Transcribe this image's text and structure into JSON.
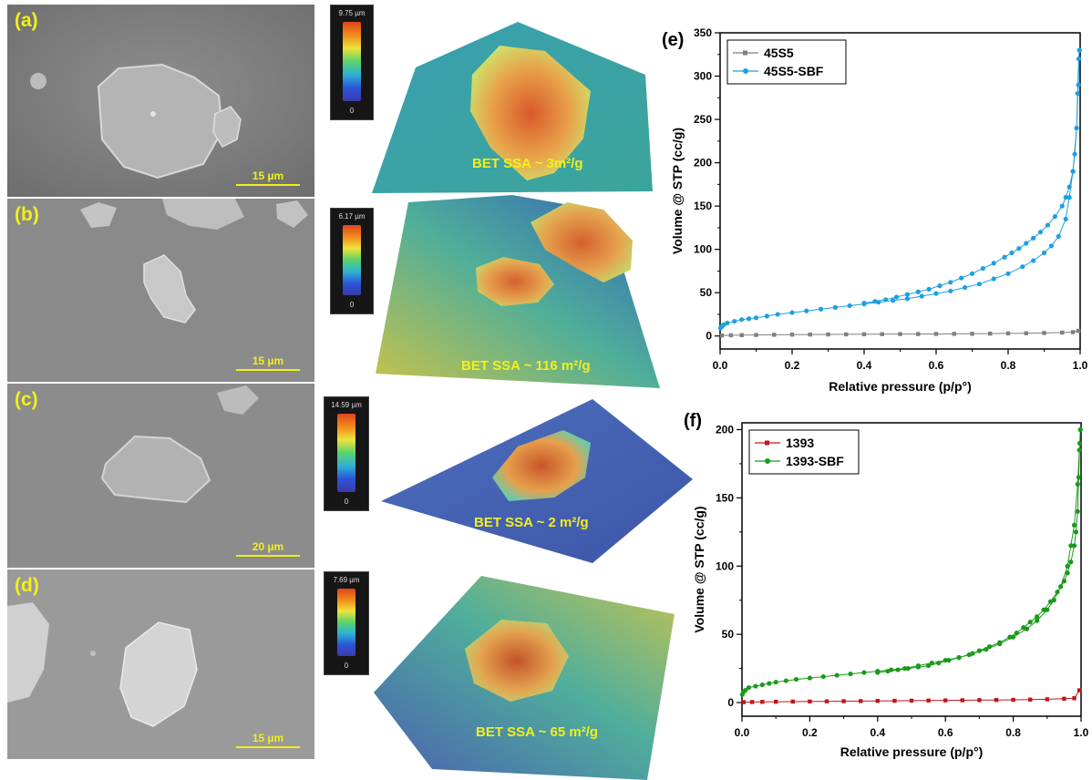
{
  "panels": [
    {
      "letter": "(a)",
      "scale": "15 µm",
      "cbar_max": "9.75 µm",
      "cbar_min": "0",
      "bet": "BET SSA ~ 3m²/g"
    },
    {
      "letter": "(b)",
      "scale": "15 µm",
      "cbar_max": "6.17 µm",
      "cbar_min": "0",
      "bet": "BET SSA ~ 116 m²/g"
    },
    {
      "letter": "(c)",
      "scale": "20 µm",
      "cbar_max": "14.59 µm",
      "cbar_min": "0",
      "bet": "BET SSA ~ 2 m²/g"
    },
    {
      "letter": "(d)",
      "scale": "15 µm",
      "cbar_max": "7.69 µm",
      "cbar_min": "0",
      "bet": "BET SSA ~ 65 m²/g"
    }
  ],
  "colors": {
    "s45s5": "#7f7f7f",
    "s45s5_sbf": "#1e9fe0",
    "s1393": "#c0161a",
    "s1393_sbf": "#1a9a1a",
    "label_yellow": "#f2f01a"
  },
  "chart_data": [
    {
      "type": "line",
      "panel_label": "(e)",
      "xlabel": "Relative pressure (p/p°)",
      "ylabel": "Volume @ STP (cc/g)",
      "xlim": [
        0,
        1.0
      ],
      "ylim": [
        -15,
        350
      ],
      "xticks": [
        0.0,
        0.2,
        0.4,
        0.6,
        0.8,
        1.0
      ],
      "yticks": [
        0,
        50,
        100,
        150,
        200,
        250,
        300,
        350
      ],
      "legend_position": "top-left",
      "series": [
        {
          "name": "45S5",
          "color": "#7f7f7f",
          "marker": "square",
          "x": [
            0.005,
            0.03,
            0.06,
            0.1,
            0.15,
            0.2,
            0.25,
            0.3,
            0.35,
            0.4,
            0.45,
            0.5,
            0.55,
            0.6,
            0.65,
            0.7,
            0.75,
            0.8,
            0.85,
            0.9,
            0.95,
            0.98,
            0.995
          ],
          "y": [
            0.5,
            0.8,
            1,
            1.2,
            1.4,
            1.6,
            1.7,
            1.8,
            1.9,
            2,
            2.1,
            2.2,
            2.3,
            2.4,
            2.5,
            2.6,
            2.8,
            3,
            3.2,
            3.5,
            4,
            4.5,
            6
          ]
        },
        {
          "name": "45S5-SBF",
          "color": "#1e9fe0",
          "marker": "circle",
          "x": [
            0.001,
            0.005,
            0.01,
            0.02,
            0.04,
            0.06,
            0.08,
            0.1,
            0.13,
            0.16,
            0.2,
            0.24,
            0.28,
            0.32,
            0.36,
            0.4,
            0.44,
            0.48,
            0.52,
            0.56,
            0.6,
            0.64,
            0.68,
            0.72,
            0.76,
            0.8,
            0.84,
            0.87,
            0.9,
            0.92,
            0.94,
            0.96,
            0.97,
            0.98,
            0.99,
            0.995,
            0.998,
            0.998,
            0.996,
            0.993,
            0.99,
            0.985,
            0.98,
            0.97,
            0.96,
            0.95,
            0.93,
            0.91,
            0.89,
            0.87,
            0.85,
            0.83,
            0.81,
            0.79,
            0.76,
            0.73,
            0.7,
            0.67,
            0.64,
            0.61,
            0.58,
            0.55,
            0.52,
            0.49,
            0.46,
            0.43,
            0.4
          ],
          "y": [
            9,
            11,
            13,
            15,
            17,
            19,
            20,
            21,
            23,
            25,
            27,
            29,
            31,
            33,
            35,
            37,
            39,
            41,
            43,
            46,
            49,
            52,
            56,
            60,
            66,
            72,
            80,
            87,
            96,
            104,
            115,
            135,
            160,
            190,
            240,
            290,
            330,
            330,
            320,
            280,
            240,
            210,
            190,
            172,
            160,
            150,
            138,
            128,
            120,
            113,
            107,
            101,
            96,
            91,
            84,
            78,
            72,
            67,
            62,
            58,
            54,
            51,
            48,
            45,
            42,
            40,
            38
          ]
        }
      ]
    },
    {
      "type": "line",
      "panel_label": "(f)",
      "xlabel": "Relative pressure (p/p°)",
      "ylabel": "Volume @ STP (cc/g)",
      "xlim": [
        0,
        1.0
      ],
      "ylim": [
        -10,
        205
      ],
      "xticks": [
        0.0,
        0.2,
        0.4,
        0.6,
        0.8,
        1.0
      ],
      "yticks": [
        0,
        50,
        100,
        150,
        200
      ],
      "legend_position": "top-left",
      "series": [
        {
          "name": "1393",
          "color": "#c0161a",
          "marker": "square",
          "x": [
            0.005,
            0.03,
            0.06,
            0.1,
            0.15,
            0.2,
            0.25,
            0.3,
            0.35,
            0.4,
            0.45,
            0.5,
            0.55,
            0.6,
            0.65,
            0.7,
            0.75,
            0.8,
            0.85,
            0.9,
            0.95,
            0.98,
            0.995
          ],
          "y": [
            0.3,
            0.4,
            0.5,
            0.6,
            0.7,
            0.8,
            0.9,
            1,
            1.1,
            1.2,
            1.3,
            1.4,
            1.5,
            1.6,
            1.7,
            1.8,
            1.9,
            2,
            2.2,
            2.4,
            2.8,
            3.2,
            9
          ]
        },
        {
          "name": "1393-SBF",
          "color": "#1a9a1a",
          "marker": "circle",
          "x": [
            0.001,
            0.005,
            0.01,
            0.02,
            0.04,
            0.06,
            0.08,
            0.1,
            0.13,
            0.16,
            0.2,
            0.24,
            0.28,
            0.32,
            0.36,
            0.4,
            0.44,
            0.48,
            0.52,
            0.56,
            0.6,
            0.64,
            0.68,
            0.72,
            0.76,
            0.8,
            0.84,
            0.87,
            0.9,
            0.92,
            0.94,
            0.96,
            0.97,
            0.98,
            0.99,
            0.995,
            0.998,
            0.998,
            0.996,
            0.993,
            0.99,
            0.985,
            0.98,
            0.97,
            0.96,
            0.95,
            0.93,
            0.91,
            0.89,
            0.87,
            0.85,
            0.83,
            0.81,
            0.79,
            0.76,
            0.73,
            0.7,
            0.67,
            0.64,
            0.61,
            0.58,
            0.55,
            0.52,
            0.49,
            0.46,
            0.43,
            0.4
          ],
          "y": [
            6,
            8,
            9,
            11,
            12,
            13,
            14,
            15,
            16,
            17,
            18,
            19,
            20,
            21,
            22,
            23,
            24,
            25,
            27,
            29,
            31,
            33,
            36,
            39,
            43,
            48,
            54,
            60,
            68,
            75,
            85,
            100,
            115,
            130,
            160,
            185,
            200,
            200,
            190,
            165,
            140,
            125,
            115,
            103,
            95,
            89,
            81,
            74,
            68,
            63,
            59,
            55,
            51,
            48,
            44,
            41,
            38,
            35,
            33,
            31,
            29,
            27,
            26,
            25,
            24,
            23,
            22
          ]
        }
      ]
    }
  ]
}
